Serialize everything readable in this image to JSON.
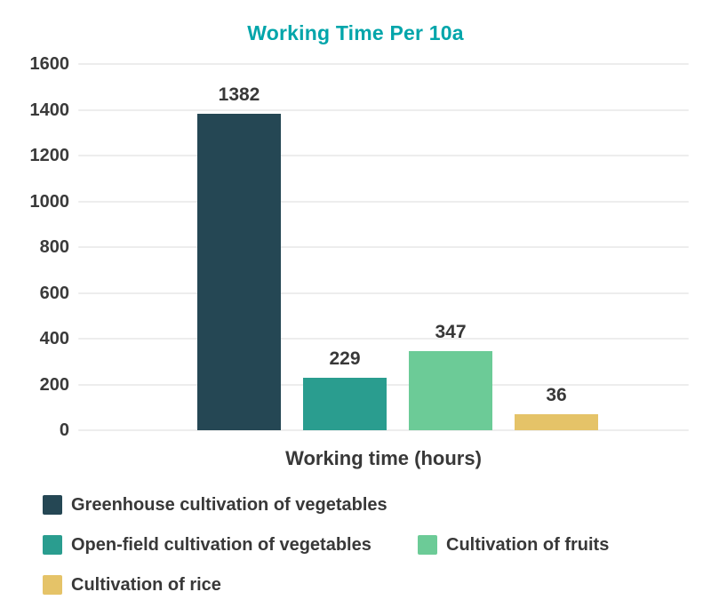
{
  "chart_data": {
    "type": "bar",
    "title": "Working Time Per 10a",
    "xlabel": "Working time (hours)",
    "ylabel": "",
    "categories": [
      "Greenhouse cultivation of vegetables",
      "Open-field cultivation of vegetables",
      "Cultivation of fruits",
      "Cultivation of rice"
    ],
    "values": [
      1382,
      229,
      347,
      36
    ],
    "data_labels": [
      "1382",
      "229",
      "347",
      "36"
    ],
    "bar_colors": [
      "#254754",
      "#2A9D8F",
      "#6CCB97",
      "#E5C368"
    ],
    "ylim": [
      0,
      1600
    ],
    "yticks": [
      "1600",
      "1400",
      "1200",
      "1000",
      "800",
      "600",
      "400",
      "200",
      "0"
    ],
    "ytick_values": [
      1600,
      1400,
      1200,
      1000,
      800,
      600,
      400,
      200,
      0
    ],
    "grid": true,
    "legend_position": "bottom",
    "legend_rows": [
      [
        0
      ],
      [
        1,
        2
      ],
      [
        3
      ]
    ]
  },
  "colors": {
    "title": "#00A5AA",
    "text": "#383838",
    "tick_text": "#3A3A3A",
    "gridline": "#EDEDED",
    "background": "#FFFFFF"
  }
}
